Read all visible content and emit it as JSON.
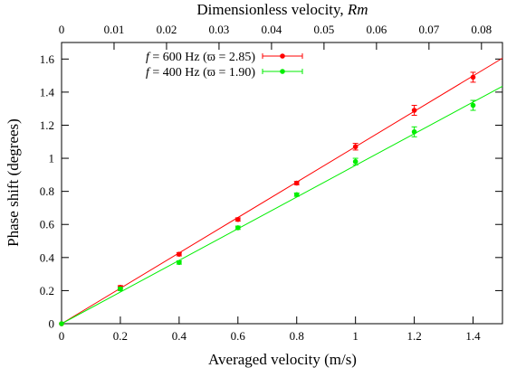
{
  "chart_data": {
    "type": "scatter",
    "xlabel": "Averaged velocity (m/s)",
    "ylabel": "Phase shift (degrees)",
    "x2label": {
      "prefix": "Dimensionless velocity, ",
      "symbol": "Rm"
    },
    "xlim": [
      0,
      1.5
    ],
    "ylim": [
      0,
      1.7
    ],
    "x2lim": [
      0,
      0.084
    ],
    "xticks": [
      "0",
      "0.2",
      "0.4",
      "0.6",
      "0.8",
      "1",
      "1.2",
      "1.4"
    ],
    "yticks": [
      "0",
      "0.2",
      "0.4",
      "0.6",
      "0.8",
      "1",
      "1.2",
      "1.4",
      "1.6"
    ],
    "x2ticks": [
      "0",
      "0.01",
      "0.02",
      "0.03",
      "0.04",
      "0.05",
      "0.06",
      "0.07",
      "0.08"
    ],
    "grid": false,
    "legend_position": "top-left",
    "series": [
      {
        "name": "f = 600 Hz (ϖ = 2.85)",
        "legend_prefix": "f",
        "legend_rest": " = 600 Hz (ϖ = 2.85)",
        "color": "#ff0000",
        "x": [
          0,
          0.2,
          0.4,
          0.6,
          0.8,
          1.0,
          1.2,
          1.4
        ],
        "y": [
          0,
          0.22,
          0.42,
          0.63,
          0.85,
          1.07,
          1.29,
          1.49
        ],
        "yerr": [
          0,
          0.01,
          0.01,
          0.01,
          0.01,
          0.02,
          0.03,
          0.03
        ],
        "fit_slope": 1.07
      },
      {
        "name": "f = 400 Hz (ϖ = 1.90)",
        "legend_prefix": "f",
        "legend_rest": " = 400 Hz (ϖ = 1.90)",
        "color": "#00ee00",
        "x": [
          0,
          0.2,
          0.4,
          0.6,
          0.8,
          1.0,
          1.2,
          1.4
        ],
        "y": [
          0,
          0.21,
          0.37,
          0.58,
          0.78,
          0.98,
          1.16,
          1.32
        ],
        "yerr": [
          0,
          0.01,
          0.01,
          0.01,
          0.01,
          0.02,
          0.03,
          0.03
        ],
        "fit_slope": 0.957
      }
    ]
  }
}
